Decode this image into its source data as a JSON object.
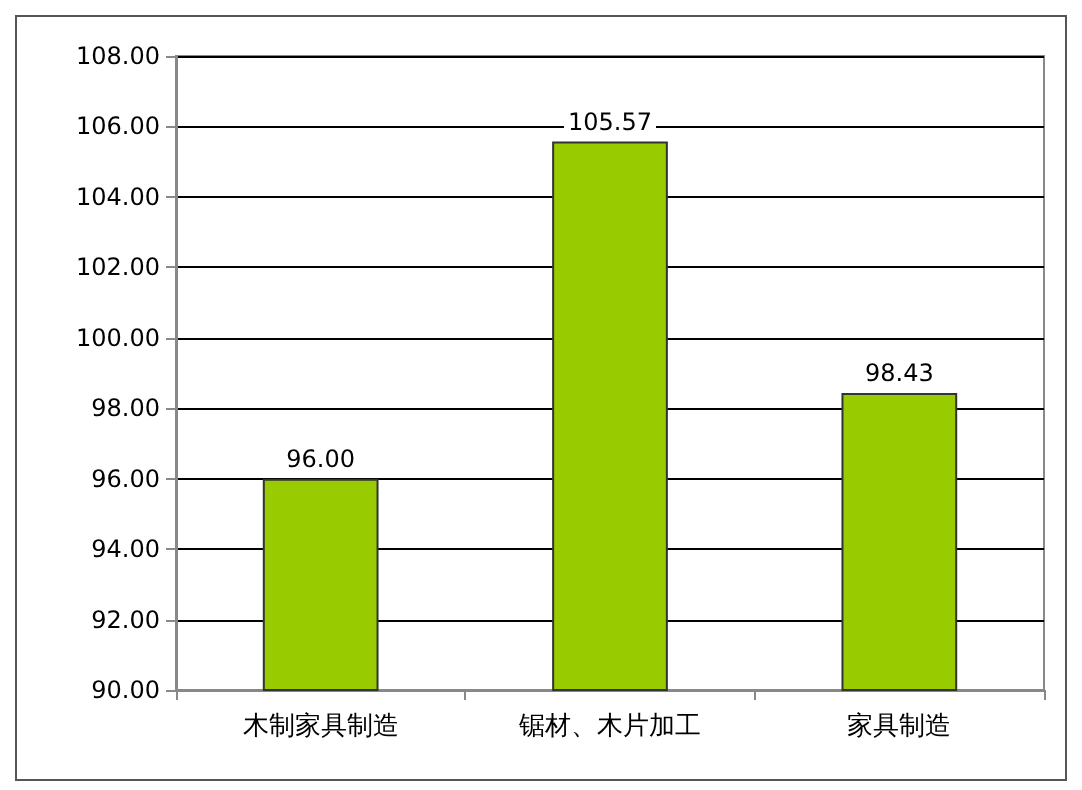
{
  "chart_data": {
    "type": "bar",
    "categories": [
      "木制家具制造",
      "锯材、木片加工",
      "家具制造"
    ],
    "values": [
      96.0,
      105.57,
      98.43
    ],
    "value_labels": [
      "96.00",
      "105.57",
      "98.43"
    ],
    "color": "#99cc00",
    "ylim": [
      90,
      108
    ],
    "yticks": [
      {
        "value": 90,
        "label": "90.00"
      },
      {
        "value": 92,
        "label": "92.00"
      },
      {
        "value": 94,
        "label": "94.00"
      },
      {
        "value": 96,
        "label": "96.00"
      },
      {
        "value": 98,
        "label": "98.00"
      },
      {
        "value": 100,
        "label": "100.00"
      },
      {
        "value": 102,
        "label": "102.00"
      },
      {
        "value": 104,
        "label": "104.00"
      },
      {
        "value": 106,
        "label": "106.00"
      },
      {
        "value": 108,
        "label": "108.00"
      }
    ],
    "grid": "y"
  }
}
